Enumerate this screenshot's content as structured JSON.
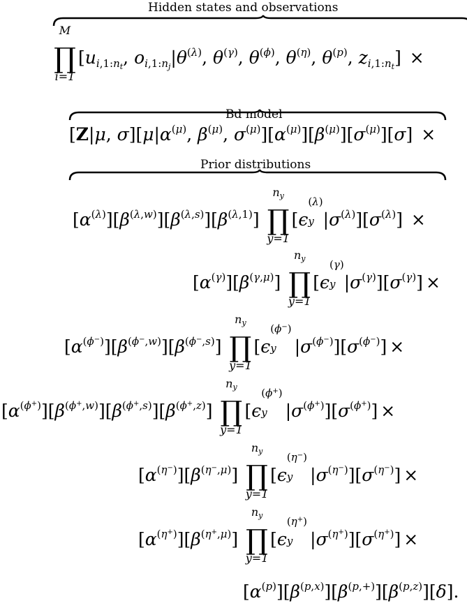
{
  "braces": {
    "hidden": "Hidden states and observations",
    "bd": "Bd model",
    "prior": "Prior distributions"
  },
  "symbols": {
    "times": "×",
    "period": "."
  },
  "product": {
    "outer_upper": "M",
    "outer_lower": "i=1",
    "inner_upper": "n",
    "inner_upper_sub": "y",
    "inner_lower": "y=1"
  }
}
